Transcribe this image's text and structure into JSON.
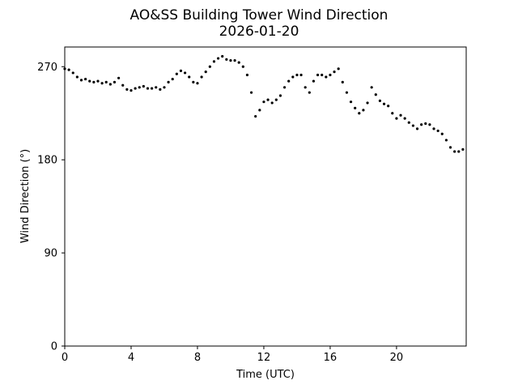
{
  "chart_data": {
    "type": "scatter",
    "title": "AO&SS Building Tower Wind Direction",
    "subtitle": "2026-01-20",
    "xlabel": "Time (UTC)",
    "ylabel": "Wind Direction (°)",
    "xlim": [
      0,
      24.2
    ],
    "ylim": [
      0,
      289
    ],
    "xticks": [
      0,
      4,
      8,
      12,
      16,
      20
    ],
    "yticks": [
      0,
      90,
      180,
      270
    ],
    "grid": false,
    "marker_color": "#000000",
    "series": [
      {
        "name": "",
        "x": [
          0.0,
          0.25,
          0.5,
          0.75,
          1.0,
          1.25,
          1.5,
          1.75,
          2.0,
          2.25,
          2.5,
          2.75,
          3.0,
          3.25,
          3.5,
          3.75,
          4.0,
          4.25,
          4.5,
          4.75,
          5.0,
          5.25,
          5.5,
          5.75,
          6.0,
          6.25,
          6.5,
          6.75,
          7.0,
          7.25,
          7.5,
          7.75,
          8.0,
          8.25,
          8.5,
          8.75,
          9.0,
          9.25,
          9.5,
          9.75,
          10.0,
          10.25,
          10.5,
          10.75,
          11.0,
          11.25,
          11.5,
          11.75,
          12.0,
          12.25,
          12.5,
          12.75,
          13.0,
          13.25,
          13.5,
          13.75,
          14.0,
          14.25,
          14.5,
          14.75,
          15.0,
          15.25,
          15.5,
          15.75,
          16.0,
          16.25,
          16.5,
          16.75,
          17.0,
          17.25,
          17.5,
          17.75,
          18.0,
          18.25,
          18.5,
          18.75,
          19.0,
          19.25,
          19.5,
          19.75,
          20.0,
          20.25,
          20.5,
          20.75,
          21.0,
          21.25,
          21.5,
          21.75,
          22.0,
          22.25,
          22.5,
          22.75,
          23.0,
          23.25,
          23.5,
          23.75,
          24.0
        ],
        "y": [
          268,
          267,
          264,
          260,
          257,
          258,
          256,
          255,
          256,
          254,
          255,
          253,
          255,
          259,
          252,
          248,
          247,
          249,
          250,
          251,
          249,
          249,
          250,
          248,
          250,
          255,
          258,
          263,
          266,
          264,
          260,
          255,
          254,
          260,
          265,
          270,
          275,
          278,
          280,
          277,
          276,
          276,
          274,
          270,
          262,
          245,
          222,
          228,
          236,
          238,
          235,
          238,
          242,
          250,
          256,
          260,
          262,
          262,
          250,
          245,
          256,
          262,
          262,
          260,
          262,
          265,
          268,
          255,
          245,
          236,
          230,
          225,
          228,
          235,
          250,
          243,
          237,
          234,
          232,
          225,
          220,
          223,
          220,
          216,
          213,
          210,
          214,
          215,
          214,
          210,
          208,
          205,
          199,
          192,
          188,
          188,
          190
        ]
      }
    ]
  }
}
